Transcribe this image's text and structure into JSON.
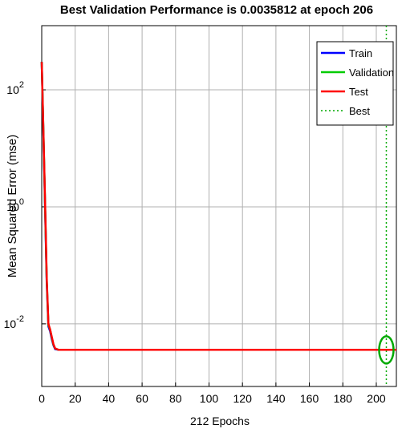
{
  "chart_data": {
    "type": "line",
    "title": "Best Validation Performance is 0.0035812 at epoch 206",
    "xlabel": "212 Epochs",
    "ylabel": "Mean Squared Error  (mse)",
    "log_y": true,
    "grid": true,
    "legend": "upper right",
    "xlim": [
      0,
      212
    ],
    "ylim": [
      0.00085,
      1250
    ],
    "xticks": [
      0,
      20,
      40,
      60,
      80,
      100,
      120,
      140,
      160,
      180,
      200
    ],
    "yticks": [
      {
        "value": 0.01,
        "label": "10",
        "exponent": "-2"
      },
      {
        "value": 1,
        "label": "10",
        "exponent": "0"
      },
      {
        "value": 100,
        "label": "10",
        "exponent": "2"
      }
    ],
    "x": [
      0,
      1,
      2,
      3,
      4,
      5,
      6,
      7,
      8,
      10,
      20,
      50,
      100,
      150,
      206,
      212
    ],
    "series": [
      {
        "name": "Train",
        "color": "#0000ff",
        "values": [
          300,
          18,
          1.0,
          0.05,
          0.009,
          0.0075,
          0.0055,
          0.0043,
          0.0037,
          0.0036,
          0.0036,
          0.0036,
          0.0036,
          0.0036,
          0.0036,
          0.0036
        ]
      },
      {
        "name": "Validation",
        "color": "#00cc00",
        "values": [
          300,
          20,
          1.1,
          0.055,
          0.0095,
          0.008,
          0.0058,
          0.0044,
          0.0038,
          0.0036,
          0.0036,
          0.0036,
          0.0036,
          0.0036,
          0.0036,
          0.0036
        ]
      },
      {
        "name": "Test",
        "color": "#ff0000",
        "values": [
          300,
          20,
          1.2,
          0.06,
          0.01,
          0.008,
          0.006,
          0.0045,
          0.0038,
          0.0036,
          0.0036,
          0.0036,
          0.0036,
          0.0036,
          0.0036,
          0.0036
        ]
      }
    ],
    "best": {
      "name": "Best",
      "color": "#00aa00",
      "x": 206,
      "y": 0.0035812
    }
  }
}
